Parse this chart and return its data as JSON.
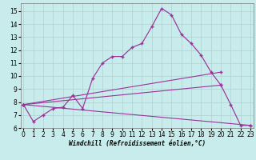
{
  "background_color": "#c8ecec",
  "grid_color": "#b0d0d0",
  "line_color": "#993399",
  "xlabel": "Windchill (Refroidissement éolien,°C)",
  "xlim": [
    -0.3,
    23.3
  ],
  "ylim": [
    6.0,
    15.6
  ],
  "yticks": [
    6,
    7,
    8,
    9,
    10,
    11,
    12,
    13,
    14,
    15
  ],
  "xticks": [
    0,
    1,
    2,
    3,
    4,
    5,
    6,
    7,
    8,
    9,
    10,
    11,
    12,
    13,
    14,
    15,
    16,
    17,
    18,
    19,
    20,
    21,
    22,
    23
  ],
  "main_x": [
    0,
    1,
    2,
    3,
    4,
    5,
    6,
    7,
    8,
    9,
    10,
    11,
    12,
    13,
    14,
    15,
    16,
    17,
    18,
    19,
    20,
    21,
    22,
    23
  ],
  "main_y": [
    7.8,
    6.5,
    7.0,
    7.5,
    7.6,
    8.5,
    7.5,
    9.8,
    11.0,
    11.5,
    11.5,
    12.2,
    12.5,
    13.8,
    15.2,
    14.7,
    13.2,
    12.5,
    11.6,
    10.3,
    9.3,
    7.8,
    6.2,
    6.2
  ],
  "line1_x": [
    0,
    20
  ],
  "line1_y": [
    7.8,
    10.3
  ],
  "line2_x": [
    0,
    20
  ],
  "line2_y": [
    7.8,
    9.3
  ],
  "line3_x": [
    0,
    23
  ],
  "line3_y": [
    7.8,
    6.2
  ],
  "label_fontsize": 5.5,
  "tick_fontsize": 5.5
}
